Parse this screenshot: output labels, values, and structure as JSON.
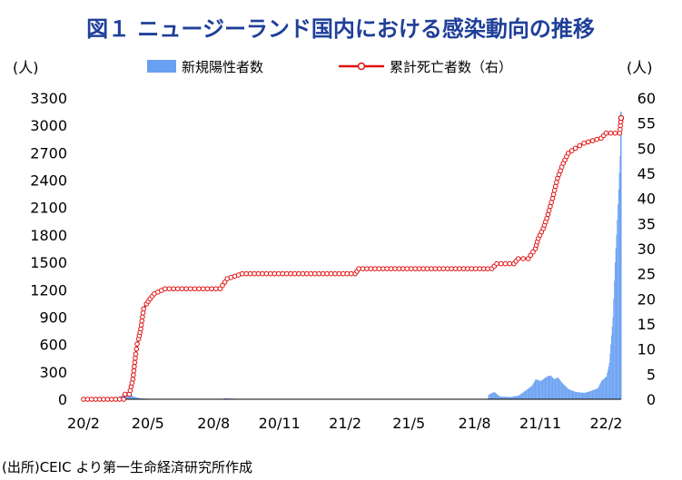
{
  "chart_data": {
    "type": "bar+line",
    "title": "図１ ニュージーランド国内における感染動向の推移",
    "left_unit": "(人)",
    "right_unit": "(人)",
    "source": "(出所)CEIC より第一生命経済研究所作成",
    "x_tick_labels": [
      "20/2",
      "20/5",
      "20/8",
      "20/11",
      "21/2",
      "21/5",
      "21/8",
      "21/11",
      "22/2"
    ],
    "y_left": {
      "min": 0,
      "max": 3300,
      "step": 300
    },
    "y_right": {
      "min": 0,
      "max": 60,
      "step": 5
    },
    "legend": [
      {
        "name": "新規陽性者数",
        "kind": "bar",
        "color": "#6aa0f2"
      },
      {
        "name": "累計死亡者数（右）",
        "kind": "line",
        "color": "#e01010"
      }
    ],
    "bar_series": {
      "name": "新規陽性者数",
      "axis": "left",
      "points": [
        [
          "2020-03-15",
          5
        ],
        [
          "2020-03-25",
          40
        ],
        [
          "2020-04-01",
          80
        ],
        [
          "2020-04-05",
          70
        ],
        [
          "2020-04-10",
          30
        ],
        [
          "2020-04-20",
          10
        ],
        [
          "2020-05-10",
          2
        ],
        [
          "2020-08-15",
          10
        ],
        [
          "2020-09-01",
          5
        ],
        [
          "2020-11-01",
          3
        ],
        [
          "2021-02-15",
          5
        ],
        [
          "2021-06-01",
          2
        ],
        [
          "2021-08-20",
          50
        ],
        [
          "2021-08-28",
          80
        ],
        [
          "2021-09-05",
          30
        ],
        [
          "2021-09-20",
          25
        ],
        [
          "2021-10-01",
          40
        ],
        [
          "2021-10-10",
          90
        ],
        [
          "2021-10-20",
          150
        ],
        [
          "2021-10-25",
          220
        ],
        [
          "2021-11-01",
          200
        ],
        [
          "2021-11-10",
          250
        ],
        [
          "2021-11-15",
          260
        ],
        [
          "2021-11-20",
          220
        ],
        [
          "2021-11-25",
          240
        ],
        [
          "2021-12-01",
          180
        ],
        [
          "2021-12-10",
          110
        ],
        [
          "2021-12-20",
          80
        ],
        [
          "2022-01-01",
          70
        ],
        [
          "2022-01-10",
          90
        ],
        [
          "2022-01-20",
          120
        ],
        [
          "2022-01-25",
          200
        ],
        [
          "2022-02-01",
          250
        ],
        [
          "2022-02-05",
          400
        ],
        [
          "2022-02-10",
          900
        ],
        [
          "2022-02-13",
          1500
        ],
        [
          "2022-02-15",
          1800
        ],
        [
          "2022-02-18",
          2300
        ],
        [
          "2022-02-21",
          2850
        ],
        [
          "2022-02-22",
          3150
        ]
      ]
    },
    "line_series": {
      "name": "累計死亡者数（右）",
      "axis": "right",
      "points": [
        [
          "2020-02-01",
          0
        ],
        [
          "2020-03-28",
          0
        ],
        [
          "2020-03-30",
          1
        ],
        [
          "2020-04-05",
          1
        ],
        [
          "2020-04-10",
          4
        ],
        [
          "2020-04-14",
          9
        ],
        [
          "2020-04-16",
          11
        ],
        [
          "2020-04-18",
          12
        ],
        [
          "2020-04-21",
          14
        ],
        [
          "2020-04-25",
          18
        ],
        [
          "2020-04-29",
          19
        ],
        [
          "2020-05-04",
          20
        ],
        [
          "2020-05-10",
          21
        ],
        [
          "2020-05-25",
          22
        ],
        [
          "2020-08-10",
          22
        ],
        [
          "2020-08-20",
          24
        ],
        [
          "2020-09-10",
          25
        ],
        [
          "2021-02-15",
          25
        ],
        [
          "2021-02-20",
          26
        ],
        [
          "2021-08-25",
          26
        ],
        [
          "2021-09-01",
          27
        ],
        [
          "2021-09-25",
          27
        ],
        [
          "2021-10-01",
          28
        ],
        [
          "2021-10-15",
          28
        ],
        [
          "2021-10-25",
          30
        ],
        [
          "2021-10-29",
          32
        ],
        [
          "2021-11-05",
          34
        ],
        [
          "2021-11-10",
          36
        ],
        [
          "2021-11-18",
          40
        ],
        [
          "2021-11-25",
          44
        ],
        [
          "2021-12-03",
          47
        ],
        [
          "2021-12-10",
          49
        ],
        [
          "2021-12-20",
          50
        ],
        [
          "2022-01-01",
          51
        ],
        [
          "2022-01-25",
          52
        ],
        [
          "2022-02-01",
          53
        ],
        [
          "2022-02-20",
          53
        ],
        [
          "2022-02-22",
          56
        ]
      ]
    }
  }
}
